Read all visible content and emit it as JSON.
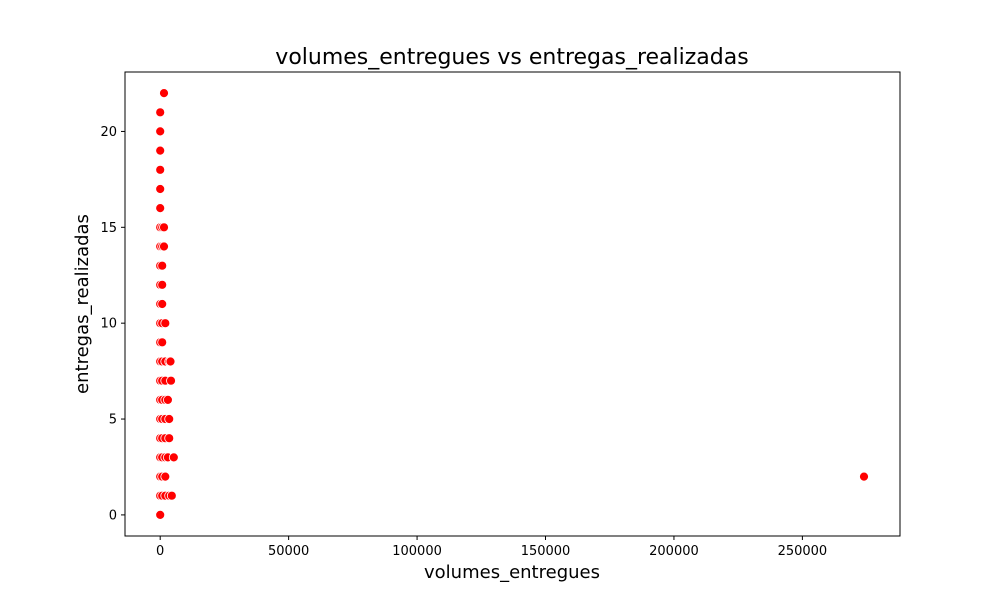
{
  "chart_data": {
    "type": "scatter",
    "title": "volumes_entregues vs entregas_realizadas",
    "xlabel": "volumes_entregues",
    "ylabel": "entregas_realizadas",
    "xlim": [
      -13700,
      288000
    ],
    "ylim": [
      -1.1,
      23.1
    ],
    "xticks": [
      0,
      50000,
      100000,
      150000,
      200000,
      250000
    ],
    "xtick_labels": [
      "0",
      "50000",
      "100000",
      "150000",
      "200000",
      "250000"
    ],
    "yticks": [
      0,
      5,
      10,
      15,
      20
    ],
    "ytick_labels": [
      "0",
      "5",
      "10",
      "15",
      "20"
    ],
    "grid": false,
    "point_color": "#ff0000",
    "points": [
      {
        "x": 0,
        "y": 0
      },
      {
        "x": 0,
        "y": 1
      },
      {
        "x": 800,
        "y": 1
      },
      {
        "x": 2000,
        "y": 1
      },
      {
        "x": 3500,
        "y": 1
      },
      {
        "x": 4500,
        "y": 1
      },
      {
        "x": 0,
        "y": 2
      },
      {
        "x": 800,
        "y": 2
      },
      {
        "x": 2000,
        "y": 2
      },
      {
        "x": 0,
        "y": 3
      },
      {
        "x": 800,
        "y": 3
      },
      {
        "x": 2000,
        "y": 3
      },
      {
        "x": 3000,
        "y": 3
      },
      {
        "x": 5300,
        "y": 3
      },
      {
        "x": 0,
        "y": 4
      },
      {
        "x": 800,
        "y": 4
      },
      {
        "x": 2000,
        "y": 4
      },
      {
        "x": 3500,
        "y": 4
      },
      {
        "x": 0,
        "y": 5
      },
      {
        "x": 800,
        "y": 5
      },
      {
        "x": 2000,
        "y": 5
      },
      {
        "x": 3500,
        "y": 5
      },
      {
        "x": 0,
        "y": 6
      },
      {
        "x": 800,
        "y": 6
      },
      {
        "x": 2000,
        "y": 6
      },
      {
        "x": 3000,
        "y": 6
      },
      {
        "x": 0,
        "y": 7
      },
      {
        "x": 800,
        "y": 7
      },
      {
        "x": 2000,
        "y": 7
      },
      {
        "x": 4200,
        "y": 7
      },
      {
        "x": 0,
        "y": 8
      },
      {
        "x": 800,
        "y": 8
      },
      {
        "x": 2000,
        "y": 8
      },
      {
        "x": 3500,
        "y": 8
      },
      {
        "x": 4000,
        "y": 8
      },
      {
        "x": 0,
        "y": 9
      },
      {
        "x": 800,
        "y": 9
      },
      {
        "x": 0,
        "y": 10
      },
      {
        "x": 800,
        "y": 10
      },
      {
        "x": 2000,
        "y": 10
      },
      {
        "x": 0,
        "y": 11
      },
      {
        "x": 800,
        "y": 11
      },
      {
        "x": 0,
        "y": 12
      },
      {
        "x": 800,
        "y": 12
      },
      {
        "x": 0,
        "y": 13
      },
      {
        "x": 800,
        "y": 13
      },
      {
        "x": 0,
        "y": 14
      },
      {
        "x": 800,
        "y": 14
      },
      {
        "x": 1500,
        "y": 14
      },
      {
        "x": 0,
        "y": 15
      },
      {
        "x": 800,
        "y": 15
      },
      {
        "x": 1500,
        "y": 15
      },
      {
        "x": 0,
        "y": 16
      },
      {
        "x": 0,
        "y": 17
      },
      {
        "x": 0,
        "y": 18
      },
      {
        "x": 0,
        "y": 19
      },
      {
        "x": 0,
        "y": 20
      },
      {
        "x": 0,
        "y": 21
      },
      {
        "x": 1500,
        "y": 22
      },
      {
        "x": 274000,
        "y": 2
      }
    ]
  }
}
